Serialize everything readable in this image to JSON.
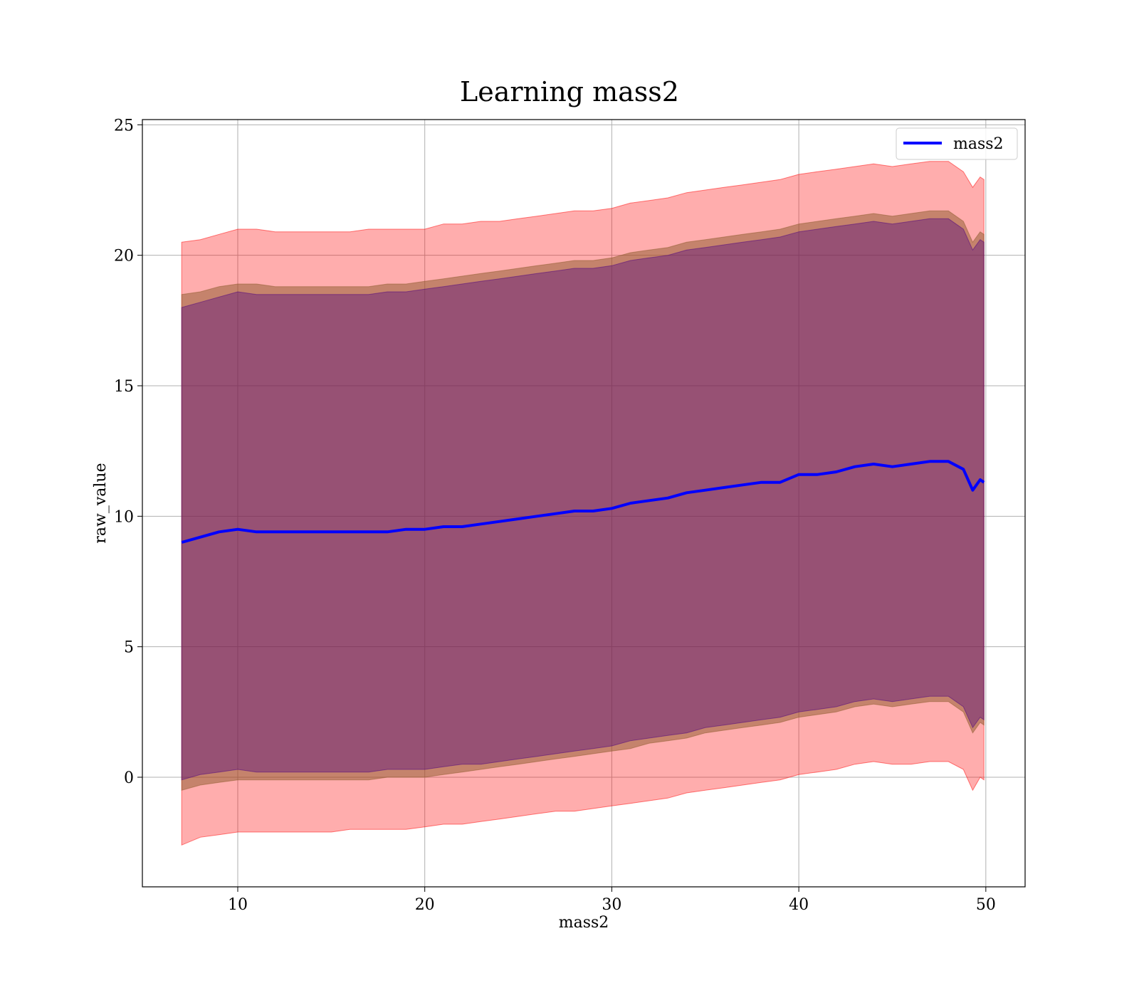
{
  "chart_data": {
    "type": "area",
    "title": "Learning mass2",
    "xlabel": "mass2",
    "ylabel": "raw_value",
    "xlim": [
      4.9,
      52.1
    ],
    "ylim": [
      -4.2,
      25.2
    ],
    "xticks": [
      10,
      20,
      30,
      40,
      50
    ],
    "yticks": [
      0,
      5,
      10,
      15,
      20,
      25
    ],
    "grid": true,
    "legend": {
      "position": "upper right",
      "entries": [
        "mass2"
      ]
    },
    "colors": {
      "line": "#0000ff",
      "outer_band": "#ff0000",
      "middle_band": "#8b5a2b",
      "inner_band": "#4b0082",
      "grid": "#b0b0b0"
    },
    "x": [
      7,
      8,
      9,
      10,
      11,
      12,
      13,
      14,
      15,
      16,
      17,
      18,
      19,
      20,
      21,
      22,
      23,
      24,
      25,
      26,
      27,
      28,
      29,
      30,
      31,
      32,
      33,
      34,
      35,
      36,
      37,
      38,
      39,
      40,
      41,
      42,
      43,
      44,
      45,
      46,
      47,
      48,
      48.8,
      49.3,
      49.7,
      49.9
    ],
    "series": [
      {
        "name": "mass2",
        "values": [
          9.0,
          9.2,
          9.4,
          9.5,
          9.4,
          9.4,
          9.4,
          9.4,
          9.4,
          9.4,
          9.4,
          9.4,
          9.5,
          9.5,
          9.6,
          9.6,
          9.7,
          9.8,
          9.9,
          10.0,
          10.1,
          10.2,
          10.2,
          10.3,
          10.5,
          10.6,
          10.7,
          10.9,
          11.0,
          11.1,
          11.2,
          11.3,
          11.3,
          11.6,
          11.6,
          11.7,
          11.9,
          12.0,
          11.9,
          12.0,
          12.1,
          12.1,
          11.8,
          11.0,
          11.4,
          11.3
        ]
      },
      {
        "name": "",
        "kind": "band",
        "lower": [
          -2.6,
          -2.3,
          -2.2,
          -2.1,
          -2.1,
          -2.1,
          -2.1,
          -2.1,
          -2.1,
          -2.0,
          -2.0,
          -2.0,
          -2.0,
          -1.9,
          -1.8,
          -1.8,
          -1.7,
          -1.6,
          -1.5,
          -1.4,
          -1.3,
          -1.3,
          -1.2,
          -1.1,
          -1.0,
          -0.9,
          -0.8,
          -0.6,
          -0.5,
          -0.4,
          -0.3,
          -0.2,
          -0.1,
          0.1,
          0.2,
          0.3,
          0.5,
          0.6,
          0.5,
          0.5,
          0.6,
          0.6,
          0.3,
          -0.5,
          0.0,
          -0.1
        ],
        "upper": [
          20.5,
          20.6,
          20.8,
          21.0,
          21.0,
          20.9,
          20.9,
          20.9,
          20.9,
          20.9,
          21.0,
          21.0,
          21.0,
          21.0,
          21.2,
          21.2,
          21.3,
          21.3,
          21.4,
          21.5,
          21.6,
          21.7,
          21.7,
          21.8,
          22.0,
          22.1,
          22.2,
          22.4,
          22.5,
          22.6,
          22.7,
          22.8,
          22.9,
          23.1,
          23.2,
          23.3,
          23.4,
          23.5,
          23.4,
          23.5,
          23.6,
          23.6,
          23.2,
          22.6,
          23.0,
          22.9
        ]
      },
      {
        "name": "",
        "kind": "band",
        "lower": [
          -0.5,
          -0.3,
          -0.2,
          -0.1,
          -0.1,
          -0.1,
          -0.1,
          -0.1,
          -0.1,
          -0.1,
          -0.1,
          0.0,
          0.0,
          0.0,
          0.1,
          0.2,
          0.3,
          0.4,
          0.5,
          0.6,
          0.7,
          0.8,
          0.9,
          1.0,
          1.1,
          1.3,
          1.4,
          1.5,
          1.7,
          1.8,
          1.9,
          2.0,
          2.1,
          2.3,
          2.4,
          2.5,
          2.7,
          2.8,
          2.7,
          2.8,
          2.9,
          2.9,
          2.5,
          1.7,
          2.1,
          2.0
        ],
        "upper": [
          18.5,
          18.6,
          18.8,
          18.9,
          18.9,
          18.8,
          18.8,
          18.8,
          18.8,
          18.8,
          18.8,
          18.9,
          18.9,
          19.0,
          19.1,
          19.2,
          19.3,
          19.4,
          19.5,
          19.6,
          19.7,
          19.8,
          19.8,
          19.9,
          20.1,
          20.2,
          20.3,
          20.5,
          20.6,
          20.7,
          20.8,
          20.9,
          21.0,
          21.2,
          21.3,
          21.4,
          21.5,
          21.6,
          21.5,
          21.6,
          21.7,
          21.7,
          21.3,
          20.5,
          20.9,
          20.8
        ]
      },
      {
        "name": "",
        "kind": "band",
        "lower": [
          -0.1,
          0.1,
          0.2,
          0.3,
          0.2,
          0.2,
          0.2,
          0.2,
          0.2,
          0.2,
          0.2,
          0.3,
          0.3,
          0.3,
          0.4,
          0.5,
          0.5,
          0.6,
          0.7,
          0.8,
          0.9,
          1.0,
          1.1,
          1.2,
          1.4,
          1.5,
          1.6,
          1.7,
          1.9,
          2.0,
          2.1,
          2.2,
          2.3,
          2.5,
          2.6,
          2.7,
          2.9,
          3.0,
          2.9,
          3.0,
          3.1,
          3.1,
          2.7,
          1.9,
          2.3,
          2.2
        ],
        "upper": [
          18.0,
          18.2,
          18.4,
          18.6,
          18.5,
          18.5,
          18.5,
          18.5,
          18.5,
          18.5,
          18.5,
          18.6,
          18.6,
          18.7,
          18.8,
          18.9,
          19.0,
          19.1,
          19.2,
          19.3,
          19.4,
          19.5,
          19.5,
          19.6,
          19.8,
          19.9,
          20.0,
          20.2,
          20.3,
          20.4,
          20.5,
          20.6,
          20.7,
          20.9,
          21.0,
          21.1,
          21.2,
          21.3,
          21.2,
          21.3,
          21.4,
          21.4,
          21.0,
          20.2,
          20.6,
          20.5
        ]
      }
    ]
  }
}
